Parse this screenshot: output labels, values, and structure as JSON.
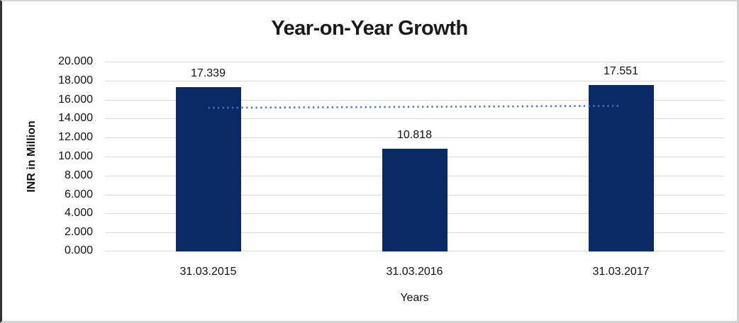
{
  "chart_data": {
    "type": "bar",
    "title": "Year-on-Year Growth",
    "xlabel": "Years",
    "ylabel": "INR in Million",
    "categories": [
      "31.03.2015",
      "31.03.2016",
      "31.03.2017"
    ],
    "values": [
      17.339,
      10.818,
      17.551
    ],
    "data_labels": [
      "17.339",
      "10.818",
      "17.551"
    ],
    "ylim": [
      0,
      20
    ],
    "ytick_step": 2,
    "ytick_decimals": 3,
    "grid": true,
    "legend": false,
    "bar_color": "#0a2a66",
    "gridline_color": "#d9d9d9",
    "trendline": {
      "type": "linear",
      "style": "dotted",
      "color": "#4472c4",
      "start_value": 15.13,
      "end_value": 15.342
    }
  }
}
